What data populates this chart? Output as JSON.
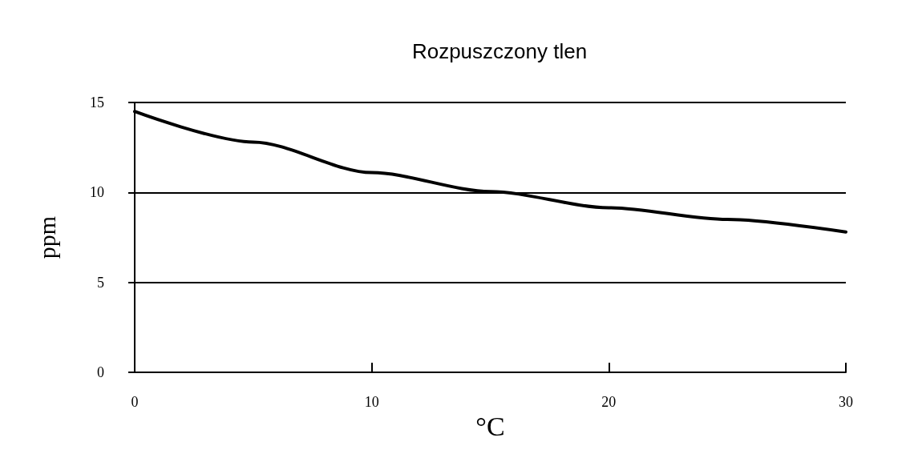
{
  "chart_data": {
    "type": "line",
    "title": "Rozpuszczony tlen",
    "xlabel": "°C",
    "ylabel": "ppm",
    "x": [
      0,
      5,
      10,
      15,
      20,
      25,
      30
    ],
    "series": [
      {
        "color": "#000000",
        "values": [
          14.5,
          12.8,
          11.1,
          10.05,
          9.15,
          8.5,
          7.8
        ]
      }
    ],
    "xlim": [
      0,
      30
    ],
    "xticks": [
      0,
      10,
      20,
      30
    ],
    "ylim": [
      0,
      15
    ],
    "yticks": [
      0,
      5,
      10,
      15
    ],
    "grid": "y",
    "marker": "none",
    "line_style": "solid"
  }
}
